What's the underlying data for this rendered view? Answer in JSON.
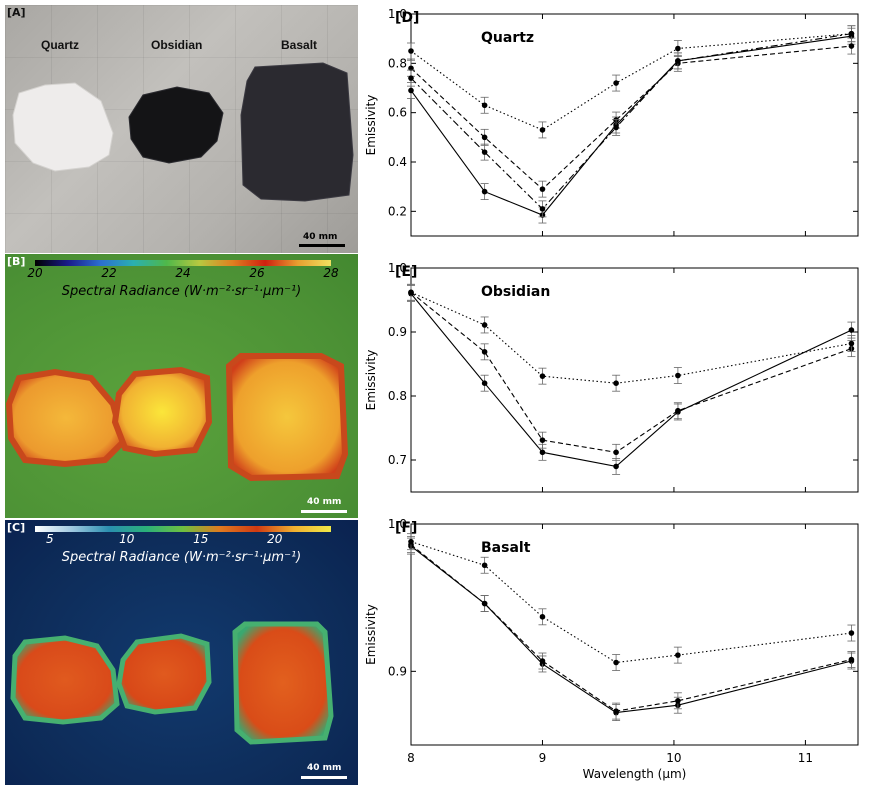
{
  "panels": {
    "a": {
      "label": "[A]",
      "rocks": [
        "Quartz",
        "Obsidian",
        "Basalt"
      ],
      "scale": "40 mm"
    },
    "b": {
      "label": "[B]",
      "colorbar_ticks": [
        "20",
        "22",
        "24",
        "26",
        "28"
      ],
      "colorbar_title": "Spectral Radiance (W·m⁻²·sr⁻¹·μm⁻¹)",
      "scale": "40 mm"
    },
    "c": {
      "label": "[C]",
      "colorbar_ticks": [
        "5",
        "10",
        "15",
        "20"
      ],
      "colorbar_title": "Spectral Radiance (W·m⁻²·sr⁻¹·μm⁻¹)",
      "scale": "40 mm"
    }
  },
  "chart_data": [
    {
      "type": "line",
      "panel_label": "[D]",
      "title": "Quartz",
      "ylabel": "Emissivity",
      "xlim": [
        8,
        11.4
      ],
      "ylim": [
        0.1,
        1.0
      ],
      "yticks": [
        "0.2",
        "0.4",
        "0.6",
        "0.8",
        "1.0"
      ],
      "series": [
        {
          "style": "solid",
          "x": [
            8.0,
            8.56,
            9.0,
            9.56,
            10.03,
            11.35
          ],
          "y": [
            0.69,
            0.28,
            0.185,
            0.55,
            0.81,
            0.91
          ]
        },
        {
          "style": "dashed",
          "x": [
            8.0,
            8.56,
            9.0,
            9.56,
            10.03,
            11.35
          ],
          "y": [
            0.78,
            0.5,
            0.29,
            0.57,
            0.8,
            0.87
          ]
        },
        {
          "style": "dashdot",
          "x": [
            8.0,
            8.56,
            9.0,
            9.56,
            10.03,
            11.35
          ],
          "y": [
            0.74,
            0.44,
            0.21,
            0.54,
            0.81,
            0.92
          ]
        },
        {
          "style": "dotted",
          "x": [
            8.0,
            8.56,
            9.0,
            9.56,
            10.03,
            11.35
          ],
          "y": [
            0.85,
            0.63,
            0.53,
            0.72,
            0.86,
            0.92
          ]
        }
      ]
    },
    {
      "type": "line",
      "panel_label": "[E]",
      "title": "Obsidian",
      "ylabel": "Emissivity",
      "xlim": [
        8,
        11.4
      ],
      "ylim": [
        0.65,
        1.0
      ],
      "yticks": [
        "0.7",
        "0.8",
        "0.9",
        "1.0"
      ],
      "series": [
        {
          "style": "solid",
          "x": [
            8.0,
            8.56,
            9.0,
            9.56,
            10.03,
            11.35
          ],
          "y": [
            0.96,
            0.82,
            0.712,
            0.69,
            0.775,
            0.903
          ]
        },
        {
          "style": "dashed",
          "x": [
            8.0,
            8.56,
            9.0,
            9.56,
            10.03,
            11.35
          ],
          "y": [
            0.962,
            0.869,
            0.731,
            0.712,
            0.777,
            0.874
          ]
        },
        {
          "style": "dotted",
          "x": [
            8.0,
            8.56,
            9.0,
            9.56,
            10.03,
            11.35
          ],
          "y": [
            0.962,
            0.911,
            0.831,
            0.82,
            0.832,
            0.882
          ]
        }
      ]
    },
    {
      "type": "line",
      "panel_label": "[F]",
      "title": "Basalt",
      "ylabel": "Emissivity",
      "xlabel": "Wavelength (μm)",
      "xlim": [
        8,
        11.4
      ],
      "ylim": [
        0.85,
        1.0
      ],
      "yticks": [
        "0.9",
        "1.0"
      ],
      "xticks": [
        "8",
        "9",
        "10",
        "11"
      ],
      "series": [
        {
          "style": "solid",
          "x": [
            8.0,
            8.56,
            9.0,
            9.56,
            10.03,
            11.35
          ],
          "y": [
            0.985,
            0.946,
            0.905,
            0.872,
            0.877,
            0.907
          ]
        },
        {
          "style": "dashed",
          "x": [
            8.0,
            8.56,
            9.0,
            9.56,
            10.03,
            11.35
          ],
          "y": [
            0.986,
            0.946,
            0.907,
            0.873,
            0.88,
            0.908
          ]
        },
        {
          "style": "dotted",
          "x": [
            8.0,
            8.56,
            9.0,
            9.56,
            10.03,
            11.35
          ],
          "y": [
            0.988,
            0.972,
            0.937,
            0.906,
            0.911,
            0.926
          ]
        }
      ]
    }
  ]
}
